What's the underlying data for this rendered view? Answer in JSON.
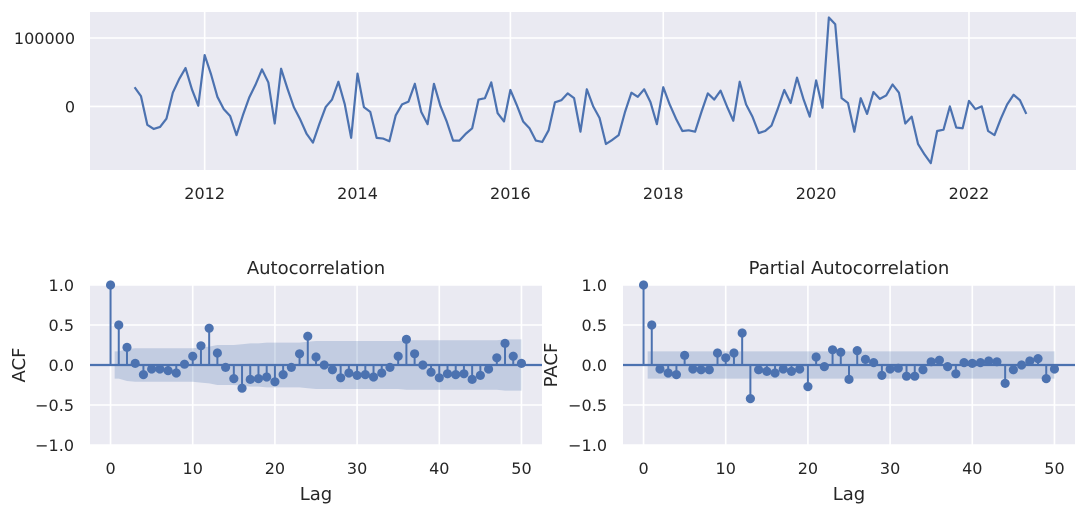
{
  "chart_data": [
    {
      "type": "line",
      "title": "",
      "xlabel": "",
      "ylabel": "",
      "xlim": [
        2010.5,
        2023.4
      ],
      "ylim": [
        -93000,
        138000
      ],
      "x_ticks": [
        2012,
        2014,
        2016,
        2018,
        2020,
        2022
      ],
      "x_tick_labels": [
        "2012",
        "2014",
        "2016",
        "2018",
        "2020",
        "2022"
      ],
      "y_ticks": [
        0,
        100000
      ],
      "y_tick_labels": [
        "0",
        "100000"
      ],
      "color": "#4c72b0",
      "start": "2011-02",
      "freq": "monthly",
      "values": [
        28000,
        15000,
        -27000,
        -33000,
        -30000,
        -18000,
        20000,
        40000,
        56000,
        25000,
        1000,
        75000,
        47000,
        14000,
        -4000,
        -14000,
        -42000,
        -13000,
        13000,
        32000,
        54000,
        35000,
        -25000,
        55000,
        26000,
        -1000,
        -19000,
        -40000,
        -53000,
        -26000,
        -1000,
        10000,
        36000,
        3000,
        -46000,
        48000,
        -1000,
        -8000,
        -46000,
        -47000,
        -51000,
        -13000,
        3000,
        7000,
        33000,
        -8000,
        -26000,
        33000,
        1000,
        -22000,
        -50000,
        -50000,
        -40000,
        -32000,
        10000,
        12000,
        35000,
        -10000,
        -22000,
        24000,
        2000,
        -22000,
        -32000,
        -50000,
        -52000,
        -35000,
        6000,
        9000,
        19000,
        12000,
        -37000,
        25000,
        0,
        -17000,
        -55000,
        -49000,
        -42000,
        -8000,
        20000,
        14000,
        25000,
        6000,
        -26000,
        28000,
        3000,
        -18000,
        -36000,
        -35000,
        -37000,
        -8000,
        19000,
        10000,
        23000,
        0,
        -21000,
        36000,
        3000,
        -15000,
        -39000,
        -36000,
        -28000,
        -3000,
        24000,
        5000,
        42000,
        11000,
        -15000,
        38000,
        -2000,
        130000,
        120000,
        12000,
        5000,
        -37000,
        12000,
        -11000,
        21000,
        11000,
        16000,
        32000,
        20000,
        -25000,
        -15000,
        -55000,
        -70000,
        -83000,
        -36000,
        -34000,
        0,
        -31000,
        -32000,
        8000,
        -4000,
        0,
        -36000,
        -42000,
        -18000,
        3000,
        17000,
        9000,
        -11000
      ]
    },
    {
      "type": "stem",
      "title": "Autocorrelation",
      "xlabel": "Lag",
      "ylabel": "ACF",
      "xlim": [
        -2.5,
        52.5
      ],
      "ylim": [
        -1.0,
        1.0
      ],
      "x_ticks": [
        0,
        10,
        20,
        30,
        40,
        50
      ],
      "y_ticks": [
        -1.0,
        -0.5,
        0.0,
        0.5,
        1.0
      ],
      "y_tick_labels": [
        "−1.0",
        "−0.5",
        "0.0",
        "0.5",
        "1.0"
      ],
      "lags": [
        0,
        1,
        2,
        3,
        4,
        5,
        6,
        7,
        8,
        9,
        10,
        11,
        12,
        13,
        14,
        15,
        16,
        17,
        18,
        19,
        20,
        21,
        22,
        23,
        24,
        25,
        26,
        27,
        28,
        29,
        30,
        31,
        32,
        33,
        34,
        35,
        36,
        37,
        38,
        39,
        40,
        41,
        42,
        43,
        44,
        45,
        46,
        47,
        48,
        49,
        50
      ],
      "values": [
        1.0,
        0.5,
        0.22,
        0.02,
        -0.12,
        -0.05,
        -0.05,
        -0.07,
        -0.1,
        0.01,
        0.11,
        0.24,
        0.46,
        0.15,
        -0.03,
        -0.17,
        -0.29,
        -0.18,
        -0.17,
        -0.15,
        -0.21,
        -0.12,
        -0.03,
        0.14,
        0.36,
        0.1,
        0.0,
        -0.06,
        -0.16,
        -0.1,
        -0.13,
        -0.12,
        -0.15,
        -0.1,
        -0.03,
        0.11,
        0.32,
        0.14,
        0.0,
        -0.09,
        -0.16,
        -0.11,
        -0.12,
        -0.11,
        -0.18,
        -0.13,
        -0.05,
        0.09,
        0.27,
        0.11,
        0.02
      ],
      "conf_band": [
        0.17,
        0.17,
        0.2,
        0.21,
        0.21,
        0.21,
        0.21,
        0.21,
        0.21,
        0.21,
        0.21,
        0.22,
        0.23,
        0.25,
        0.25,
        0.25,
        0.26,
        0.27,
        0.27,
        0.28,
        0.28,
        0.28,
        0.28,
        0.28,
        0.29,
        0.3,
        0.3,
        0.3,
        0.3,
        0.3,
        0.3,
        0.3,
        0.3,
        0.3,
        0.3,
        0.3,
        0.31,
        0.31,
        0.31,
        0.31,
        0.31,
        0.31,
        0.31,
        0.31,
        0.31,
        0.31,
        0.31,
        0.31,
        0.32,
        0.32,
        0.32
      ],
      "color": "#4c72b0"
    },
    {
      "type": "stem",
      "title": "Partial Autocorrelation",
      "xlabel": "Lag",
      "ylabel": "PACF",
      "xlim": [
        -2.5,
        52.5
      ],
      "ylim": [
        -1.0,
        1.0
      ],
      "x_ticks": [
        0,
        10,
        20,
        30,
        40,
        50
      ],
      "y_ticks": [
        -1.0,
        -0.5,
        0.0,
        0.5,
        1.0
      ],
      "y_tick_labels": [
        "−1.0",
        "−0.5",
        "0.0",
        "0.5",
        "1.0"
      ],
      "lags": [
        0,
        1,
        2,
        3,
        4,
        5,
        6,
        7,
        8,
        9,
        10,
        11,
        12,
        13,
        14,
        15,
        16,
        17,
        18,
        19,
        20,
        21,
        22,
        23,
        24,
        25,
        26,
        27,
        28,
        29,
        30,
        31,
        32,
        33,
        34,
        35,
        36,
        37,
        38,
        39,
        40,
        41,
        42,
        43,
        44,
        45,
        46,
        47,
        48,
        49,
        50
      ],
      "values": [
        1.0,
        0.5,
        -0.05,
        -0.1,
        -0.12,
        0.12,
        -0.05,
        -0.06,
        -0.06,
        0.15,
        0.09,
        0.15,
        0.4,
        -0.42,
        -0.06,
        -0.08,
        -0.1,
        -0.05,
        -0.08,
        -0.05,
        -0.27,
        0.1,
        -0.02,
        0.19,
        0.16,
        -0.18,
        0.18,
        0.07,
        0.03,
        -0.13,
        -0.05,
        -0.04,
        -0.14,
        -0.14,
        -0.06,
        0.04,
        0.06,
        -0.02,
        -0.11,
        0.03,
        0.02,
        0.03,
        0.05,
        0.04,
        -0.23,
        -0.06,
        0.0,
        0.05,
        0.08,
        -0.17,
        -0.05
      ],
      "conf_band": [
        0.17,
        0.17,
        0.17,
        0.17,
        0.17,
        0.17,
        0.17,
        0.17,
        0.17,
        0.17,
        0.17,
        0.17,
        0.17,
        0.17,
        0.17,
        0.17,
        0.17,
        0.17,
        0.17,
        0.17,
        0.17,
        0.17,
        0.17,
        0.17,
        0.17,
        0.17,
        0.17,
        0.17,
        0.17,
        0.17,
        0.17,
        0.17,
        0.17,
        0.17,
        0.17,
        0.17,
        0.17,
        0.17,
        0.17,
        0.17,
        0.17,
        0.17,
        0.17,
        0.17,
        0.17,
        0.17,
        0.17,
        0.17,
        0.17,
        0.17,
        0.17
      ],
      "color": "#4c72b0"
    }
  ]
}
